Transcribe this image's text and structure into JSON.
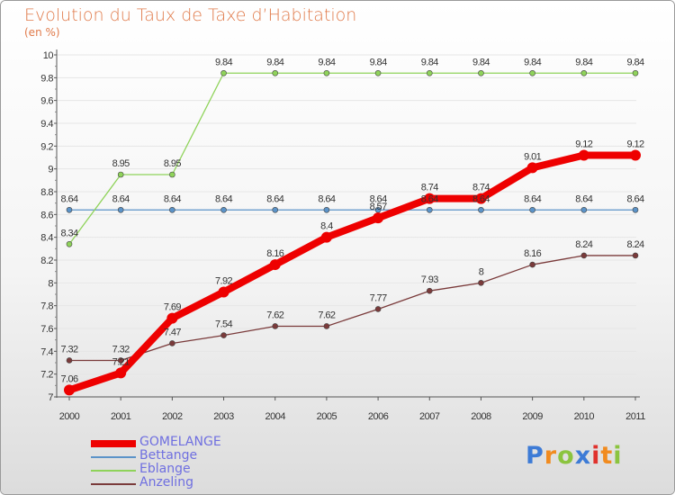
{
  "header": {
    "title": "Evolution du Taux de Taxe d’Habitation",
    "subtitle": "(en %)"
  },
  "logo": {
    "text": "Proxiti",
    "letters": [
      "P",
      "r",
      "o",
      "x",
      "i",
      "t",
      "i"
    ],
    "letter_colors": [
      "#3d7bd6",
      "#f18b1f",
      "#8bc43f",
      "#3d7bd6",
      "#e0322d",
      "#f18b1f",
      "#8bc43f"
    ]
  },
  "colors": {
    "title": "#e07a4a",
    "axis_text": "#333333",
    "legend_text": "#6f6fe0"
  },
  "chart_data": {
    "type": "line",
    "title": "Evolution du Taux de Taxe d’Habitation",
    "subtitle": "(en %)",
    "x": [
      2000,
      2001,
      2002,
      2003,
      2004,
      2005,
      2006,
      2007,
      2008,
      2009,
      2010,
      2011
    ],
    "x_ticks": [
      "2000",
      "2001",
      "2002",
      "2003",
      "2004",
      "2005",
      "2006",
      "2007",
      "2008",
      "2009",
      "2010",
      "2011"
    ],
    "ylim": [
      7,
      10
    ],
    "y_ticks": [
      "7",
      "7.2",
      "7.4",
      "7.6",
      "7.8",
      "8",
      "8.2",
      "8.4",
      "8.6",
      "8.8",
      "9",
      "9.2",
      "9.4",
      "9.6",
      "9.8",
      "10"
    ],
    "grid": true,
    "legend_position": "bottom-left",
    "series": [
      {
        "name": "GOMELANGE",
        "color": "#ee0000",
        "bold": true,
        "values": [
          7.06,
          7.21,
          7.69,
          7.92,
          8.16,
          8.4,
          8.57,
          8.74,
          8.74,
          9.01,
          9.12,
          9.12
        ],
        "labels": [
          "7.06",
          "7.21",
          "7.69",
          "7.92",
          "8.16",
          "8.4",
          "8.57",
          "8.74",
          "8.74",
          "9.01",
          "9.12",
          "9.12"
        ]
      },
      {
        "name": "Bettange",
        "color": "#5b93c8",
        "values": [
          8.64,
          8.64,
          8.64,
          8.64,
          8.64,
          8.64,
          8.64,
          8.64,
          8.64,
          8.64,
          8.64,
          8.64
        ],
        "labels": [
          "8.64",
          "8.64",
          "8.64",
          "8.64",
          "8.64",
          "8.64",
          "8.64",
          "8.64",
          "8.64",
          "8.64",
          "8.64",
          "8.64"
        ]
      },
      {
        "name": "Eblange",
        "color": "#8fd35a",
        "values": [
          8.34,
          8.95,
          8.95,
          9.84,
          9.84,
          9.84,
          9.84,
          9.84,
          9.84,
          9.84,
          9.84,
          9.84
        ],
        "labels": [
          "8.34",
          "8.95",
          "8.95",
          "9.84",
          "9.84",
          "9.84",
          "9.84",
          "9.84",
          "9.84",
          "9.84",
          "9.84",
          "9.84"
        ]
      },
      {
        "name": "Anzeling",
        "color": "#7a3a3a",
        "values": [
          7.32,
          7.32,
          7.47,
          7.54,
          7.62,
          7.62,
          7.77,
          7.93,
          8.0,
          8.16,
          8.24,
          8.24
        ],
        "labels": [
          "7.32",
          "7.32",
          "7.47",
          "7.54",
          "7.62",
          "7.62",
          "7.77",
          "7.93",
          "8",
          "8.16",
          "8.24",
          "8.24"
        ]
      }
    ]
  }
}
